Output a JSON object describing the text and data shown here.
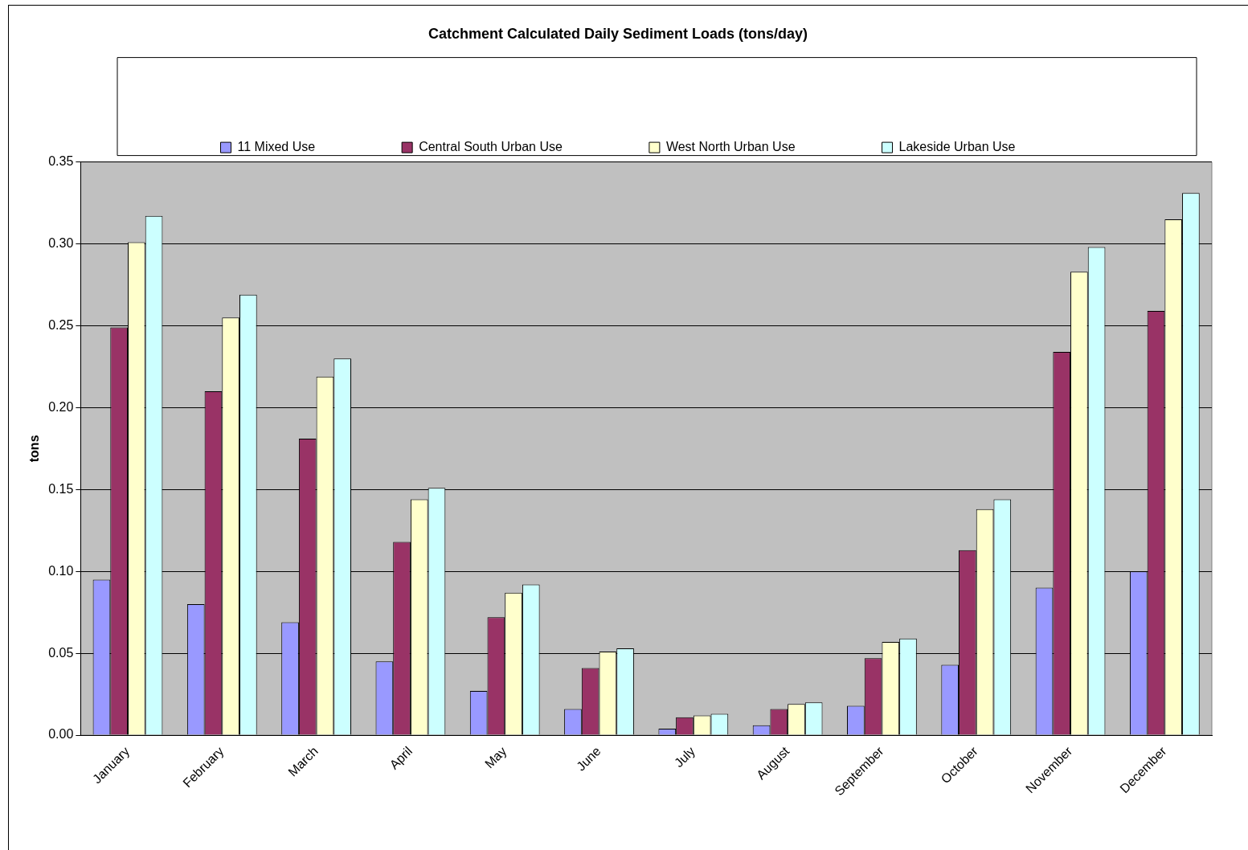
{
  "chart_data": {
    "type": "bar",
    "title": "Catchment Calculated Daily Sediment Loads (tons/day)",
    "ylabel": "tons",
    "categories": [
      "January",
      "February",
      "March",
      "April",
      "May",
      "June",
      "July",
      "August",
      "September",
      "October",
      "November",
      "December"
    ],
    "series": [
      {
        "name": "11 Mixed Use",
        "color": "#9999ff",
        "values": [
          0.095,
          0.08,
          0.069,
          0.045,
          0.027,
          0.016,
          0.004,
          0.006,
          0.018,
          0.043,
          0.09,
          0.1
        ]
      },
      {
        "name": "Central South Urban Use",
        "color": "#993366",
        "values": [
          0.249,
          0.21,
          0.181,
          0.118,
          0.072,
          0.041,
          0.011,
          0.016,
          0.047,
          0.113,
          0.234,
          0.259
        ]
      },
      {
        "name": "West North Urban Use",
        "color": "#ffffcc",
        "values": [
          0.301,
          0.255,
          0.219,
          0.144,
          0.087,
          0.051,
          0.012,
          0.019,
          0.057,
          0.138,
          0.283,
          0.315
        ]
      },
      {
        "name": "Lakeside Urban Use",
        "color": "#ccffff",
        "values": [
          0.317,
          0.269,
          0.23,
          0.151,
          0.092,
          0.053,
          0.013,
          0.02,
          0.059,
          0.144,
          0.298,
          0.331
        ]
      }
    ],
    "ylim": [
      0,
      0.35
    ],
    "yticks": [
      {
        "value": 0,
        "label": "0.00"
      },
      {
        "value": 0.05,
        "label": "0.05"
      },
      {
        "value": 0.1,
        "label": "0.10"
      },
      {
        "value": 0.15,
        "label": "0.15"
      },
      {
        "value": 0.2,
        "label": "0.20"
      },
      {
        "value": 0.25,
        "label": "0.25"
      },
      {
        "value": 0.3,
        "label": "0.30"
      },
      {
        "value": 0.35,
        "label": "0.35"
      }
    ],
    "grid": "y",
    "legend": "top"
  }
}
